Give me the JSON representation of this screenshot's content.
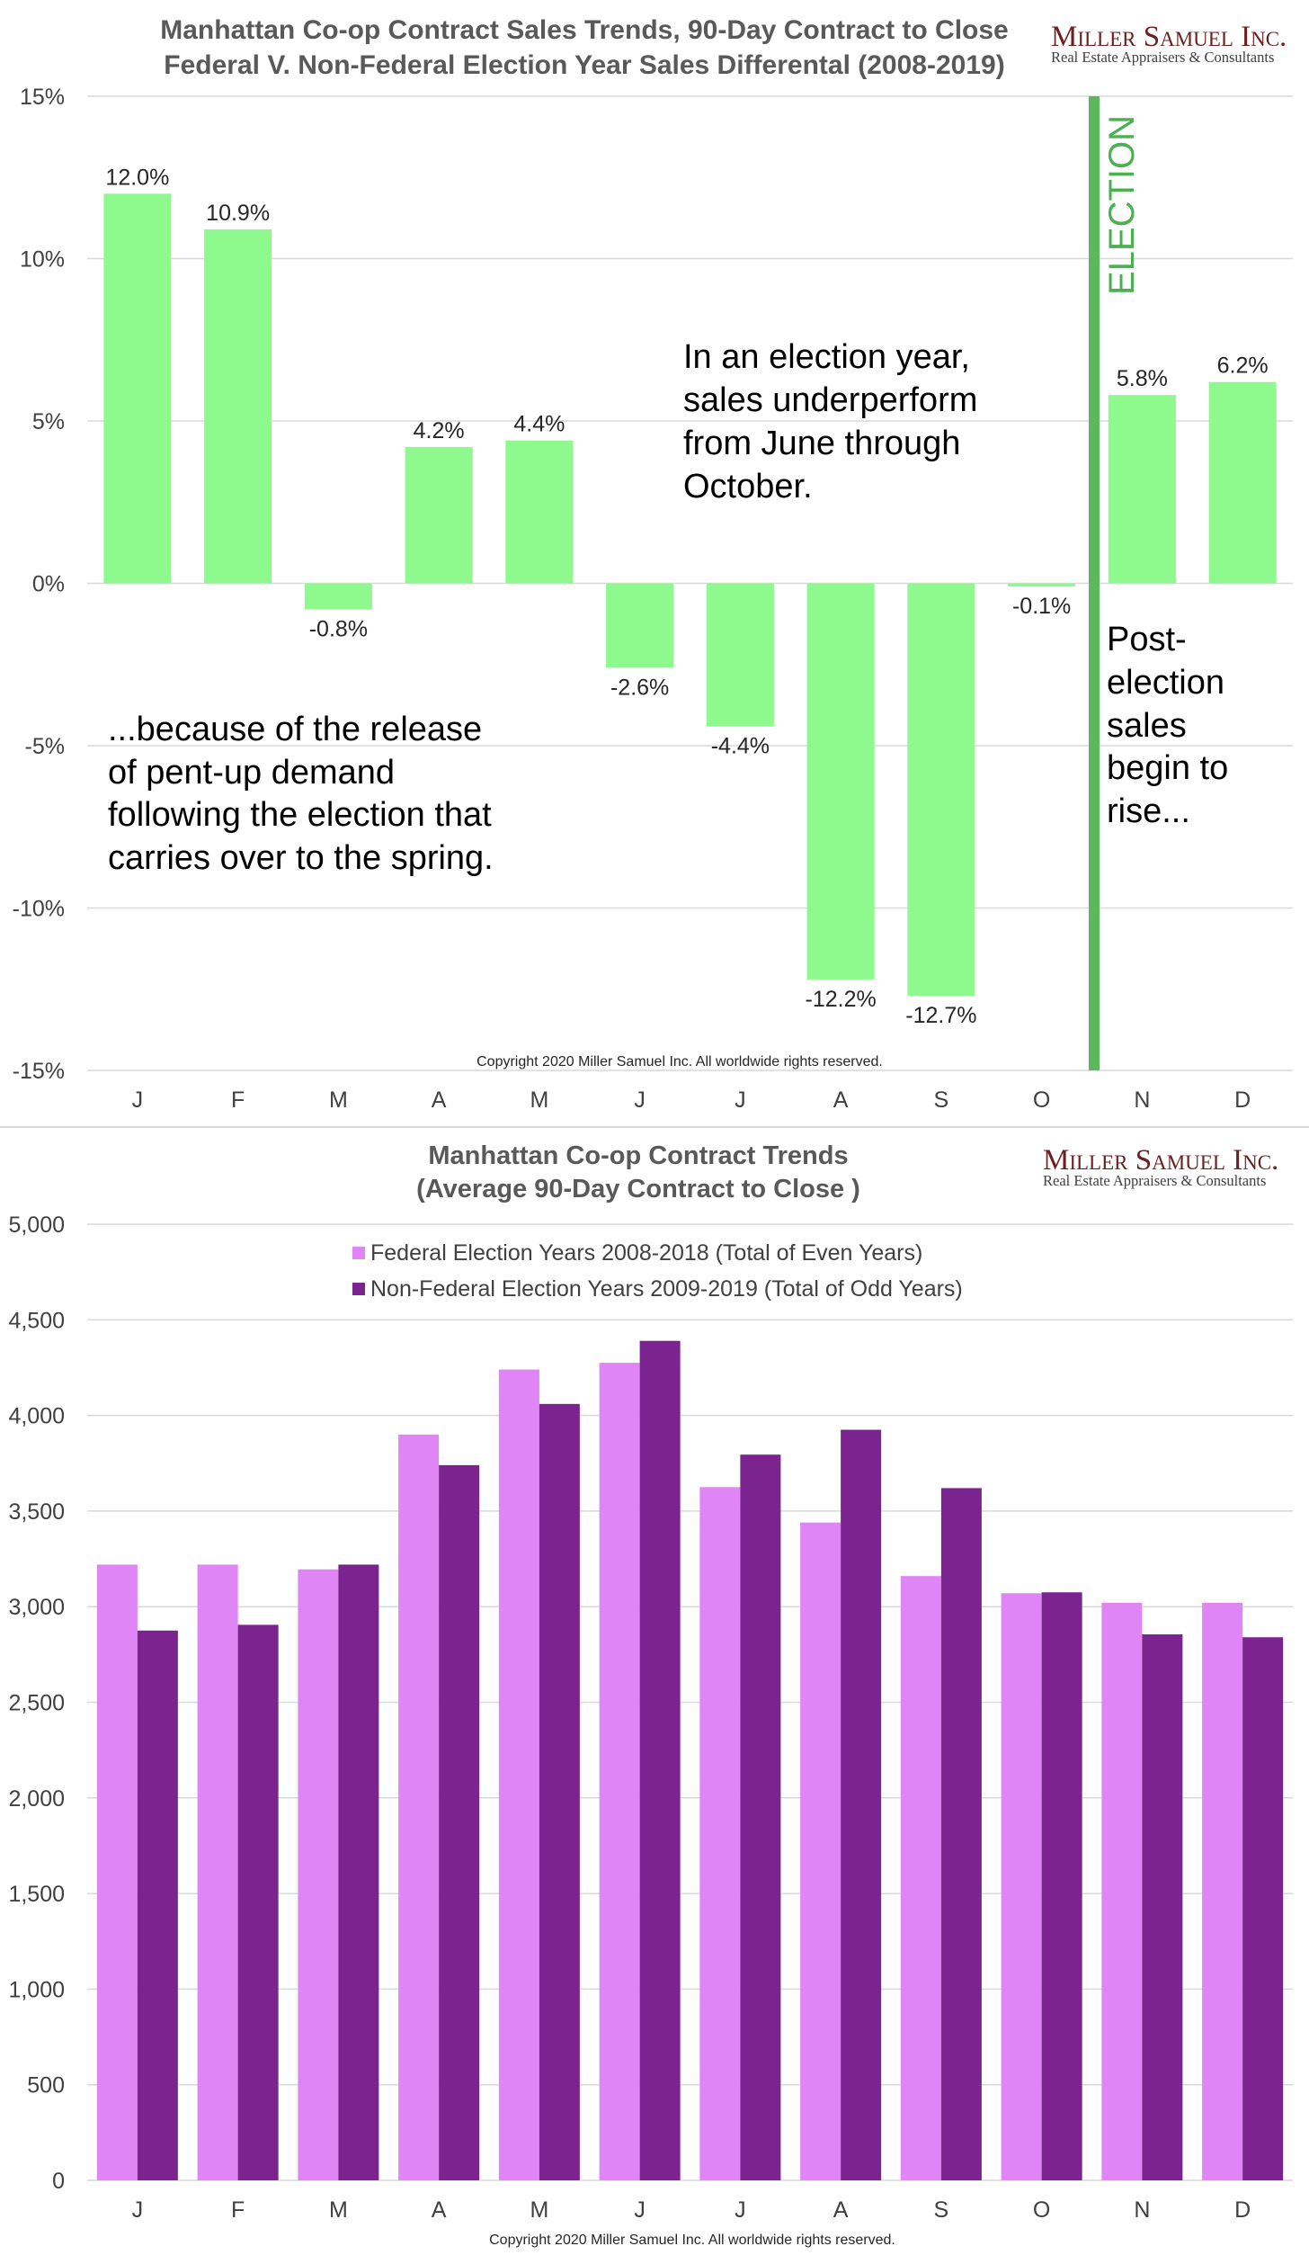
{
  "chart_data": [
    {
      "type": "bar",
      "title": "Manhattan Co-op Contract Sales Trends, 90-Day Contract to Close",
      "subtitle": "Federal V. Non-Federal Election Year Sales Differental (2008-2019)",
      "categories": [
        "J",
        "F",
        "M",
        "A",
        "M",
        "J",
        "J",
        "A",
        "S",
        "O",
        "N",
        "D"
      ],
      "values": [
        12.0,
        10.9,
        -0.8,
        4.2,
        4.4,
        -2.6,
        -4.4,
        -12.2,
        -12.7,
        -0.1,
        5.8,
        6.2
      ],
      "value_labels": [
        "12.0%",
        "10.9%",
        "-0.8%",
        "4.2%",
        "4.4%",
        "-2.6%",
        "-4.4%",
        "-12.2%",
        "-12.7%",
        "-0.1%",
        "5.8%",
        "6.2%"
      ],
      "ylim": [
        -15,
        15
      ],
      "yticks": [
        15,
        10,
        5,
        0,
        -5,
        -10,
        -15
      ],
      "ytick_labels": [
        "15%",
        "10%",
        "5%",
        "0%",
        "-5%",
        "-10%",
        "-15%"
      ],
      "xlabel": "",
      "ylabel": "",
      "grid": true,
      "bar_color": "#8efa8e",
      "election_line_color": "#5cb85c",
      "election_label": "ELECTION",
      "annotations": {
        "top_text": [
          "In an election year,",
          "sales underperform",
          "from June through",
          "October."
        ],
        "left_text": [
          "...because of the release",
          "of pent-up demand",
          "following the election that",
          "carries over to the spring."
        ],
        "right_text": [
          "Post-",
          "election",
          "sales",
          "begin to",
          "rise..."
        ]
      },
      "copyright": "Copyright 2020 Miller Samuel Inc. All worldwide rights reserved."
    },
    {
      "type": "bar",
      "title": "Manhattan Co-op Contract Trends",
      "subtitle": "(Average 90-Day Contract to Close )",
      "categories": [
        "J",
        "F",
        "M",
        "A",
        "M",
        "J",
        "J",
        "A",
        "S",
        "O",
        "N",
        "D"
      ],
      "series": [
        {
          "name": "Federal Election Years 2008-2018 (Total of Even Years)",
          "color": "#e085f5",
          "values": [
            3220,
            3220,
            3195,
            3900,
            4240,
            4275,
            3625,
            3440,
            3160,
            3070,
            3020,
            3020
          ]
        },
        {
          "name": "Non-Federal Election Years 2009-2019 (Total of Odd Years)",
          "color": "#7b238e",
          "values": [
            2875,
            2905,
            3220,
            3740,
            4060,
            4390,
            3795,
            3925,
            3620,
            3075,
            2855,
            2840
          ]
        }
      ],
      "ylim": [
        0,
        5000
      ],
      "yticks": [
        5000,
        4500,
        4000,
        3500,
        3000,
        2500,
        2000,
        1500,
        1000,
        500,
        0
      ],
      "ytick_labels": [
        "5,000",
        "4,500",
        "4,000",
        "3,500",
        "3,000",
        "2,500",
        "2,000",
        "1,500",
        "1,000",
        "500",
        "0"
      ],
      "xlabel": "",
      "ylabel": "",
      "grid": true,
      "legend_position": "top-center",
      "copyright": "Copyright 2020 Miller Samuel Inc. All worldwide rights reserved."
    }
  ],
  "logo": {
    "name": "Miller Samuel Inc.",
    "tagline": "Real Estate Appraisers & Consultants",
    "name_color": "#6b1f1f"
  }
}
